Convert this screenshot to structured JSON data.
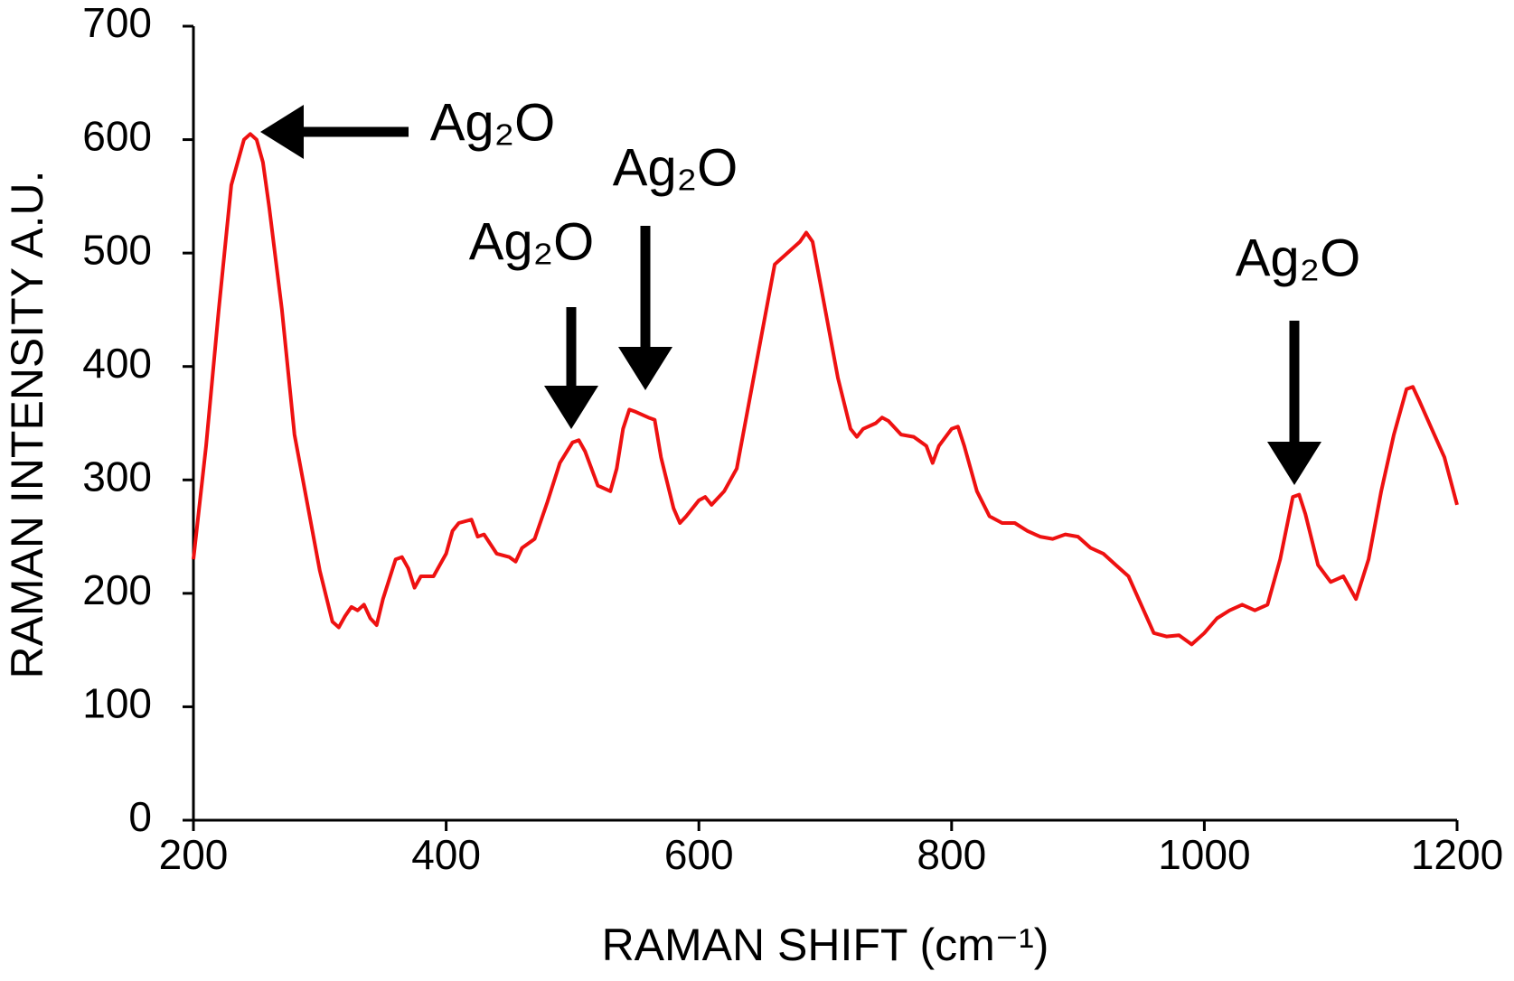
{
  "chart_data": {
    "type": "line",
    "x_label": "RAMAN SHIFT (cm⁻¹)",
    "y_label": "RAMAN INTENSITY  A.U.",
    "x": [
      200,
      210,
      220,
      230,
      240,
      245,
      250,
      255,
      260,
      270,
      280,
      290,
      300,
      310,
      315,
      320,
      325,
      330,
      335,
      340,
      345,
      350,
      360,
      365,
      370,
      375,
      380,
      390,
      400,
      405,
      410,
      420,
      425,
      430,
      440,
      450,
      455,
      460,
      470,
      480,
      490,
      500,
      505,
      510,
      520,
      530,
      535,
      540,
      545,
      550,
      560,
      565,
      570,
      580,
      585,
      590,
      600,
      605,
      610,
      620,
      630,
      640,
      650,
      660,
      670,
      680,
      685,
      690,
      700,
      710,
      720,
      725,
      730,
      740,
      745,
      750,
      760,
      770,
      780,
      785,
      790,
      800,
      805,
      810,
      820,
      830,
      840,
      850,
      860,
      870,
      880,
      890,
      900,
      910,
      920,
      930,
      940,
      950,
      960,
      970,
      980,
      990,
      1000,
      1010,
      1020,
      1030,
      1040,
      1050,
      1060,
      1070,
      1075,
      1080,
      1090,
      1100,
      1110,
      1120,
      1130,
      1140,
      1150,
      1160,
      1165,
      1170,
      1180,
      1190,
      1200
    ],
    "series": [
      {
        "color": "#ee1111",
        "values": [
          230,
          330,
          450,
          560,
          600,
          605,
          600,
          580,
          540,
          450,
          340,
          280,
          220,
          175,
          170,
          180,
          188,
          185,
          190,
          178,
          172,
          195,
          230,
          232,
          222,
          205,
          215,
          215,
          235,
          255,
          262,
          265,
          250,
          252,
          235,
          232,
          228,
          240,
          248,
          280,
          315,
          333,
          335,
          325,
          295,
          290,
          310,
          345,
          362,
          360,
          355,
          353,
          320,
          275,
          262,
          268,
          282,
          285,
          278,
          290,
          310,
          370,
          430,
          490,
          500,
          510,
          518,
          510,
          450,
          390,
          345,
          338,
          345,
          350,
          355,
          352,
          340,
          338,
          330,
          315,
          330,
          345,
          347,
          330,
          290,
          268,
          262,
          262,
          255,
          250,
          248,
          252,
          250,
          240,
          235,
          225,
          215,
          190,
          165,
          162,
          163,
          155,
          165,
          178,
          185,
          190,
          185,
          190,
          230,
          285,
          287,
          270,
          225,
          210,
          215,
          195,
          230,
          290,
          340,
          380,
          382,
          370,
          345,
          320,
          278
        ]
      }
    ],
    "xlim": [
      200,
      1200
    ],
    "xticks": [
      200,
      400,
      600,
      800,
      1000,
      1200
    ],
    "ylim": [
      0,
      700
    ],
    "yticks": [
      0,
      100,
      200,
      300,
      400,
      500,
      600,
      700
    ],
    "grid": false,
    "annotations": [
      {
        "text": "Ag₂O"
      },
      {
        "text": "Ag₂O"
      },
      {
        "text": "Ag₂O"
      },
      {
        "text": "Ag₂O"
      }
    ]
  }
}
